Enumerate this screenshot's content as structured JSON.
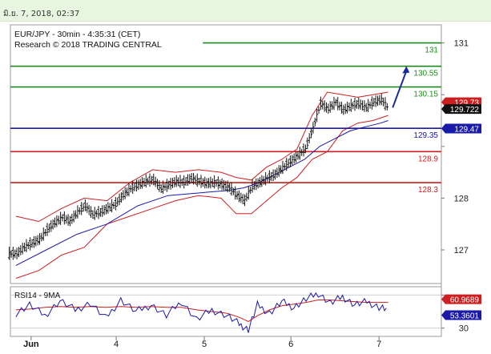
{
  "header": {
    "timestamp": "มิ.ย. 7, 2018, 02:37"
  },
  "chart_data": {
    "type": "candlestick",
    "title": "EUR/JPY - 30min - 4:35:31 (CET)",
    "subtitle": "Research © 2018 TRADING CENTRAL",
    "ylim": [
      126.35,
      131.35
    ],
    "yticks": [
      127,
      128,
      129,
      130,
      131
    ],
    "ytick_labels": [
      "127",
      "128",
      "",
      "",
      "131"
    ],
    "x_labels": [
      {
        "label": "Jun",
        "x": 0.55
      },
      {
        "label": "4",
        "x": 3.35
      },
      {
        "label": "5",
        "x": 6.25
      },
      {
        "label": "6",
        "x": 9.1
      },
      {
        "label": "7",
        "x": 12.0
      }
    ],
    "xlim": [
      0,
      14.3
    ],
    "levels": [
      {
        "value": 131.0,
        "label": "131",
        "color": "#1e8a1e",
        "type": "resistance"
      },
      {
        "value": 130.55,
        "label": "130.55",
        "color": "#1e8a1e",
        "type": "resistance"
      },
      {
        "value": 130.15,
        "label": "130.15",
        "color": "#1e8a1e",
        "type": "resistance"
      },
      {
        "value": 129.35,
        "label": "129.35",
        "color": "#1a1aa8",
        "type": "pivot"
      },
      {
        "value": 128.9,
        "label": "128.9",
        "color": "#cc1f1f",
        "type": "support"
      },
      {
        "value": 128.3,
        "label": "128.3",
        "color": "#cc1f1f",
        "type": "support"
      }
    ],
    "price_badges": [
      {
        "value": 129.73,
        "label": "129.73",
        "color": "#cc1f1f"
      },
      {
        "value": 129.722,
        "label": "129.722",
        "color": "#111111"
      },
      {
        "value": 129.47,
        "label": "129.47",
        "color": "#1a1aa8"
      }
    ],
    "projection": {
      "from": [
        12.45,
        129.75
      ],
      "to": [
        12.9,
        130.55
      ],
      "color": "#1a2a9a"
    },
    "price": {
      "x": [
        0.05,
        0.3,
        0.55,
        0.8,
        1.05,
        1.3,
        1.55,
        1.8,
        2.05,
        2.3,
        2.55,
        2.8,
        3.05,
        3.3,
        3.55,
        3.8,
        4.05,
        4.3,
        4.55,
        4.8,
        5.05,
        5.3,
        5.55,
        5.8,
        6.05,
        6.3,
        6.55,
        6.8,
        7.05,
        7.3,
        7.55,
        7.8,
        8.05,
        8.3,
        8.55,
        8.8,
        9.05,
        9.3,
        9.55,
        9.8,
        10.05,
        10.3,
        10.55,
        10.8,
        11.05,
        11.3,
        11.55,
        11.8,
        12.05,
        12.3
      ],
      "y": [
        126.92,
        127.05,
        127.12,
        127.2,
        127.38,
        127.52,
        127.62,
        127.55,
        127.72,
        127.85,
        127.68,
        127.72,
        127.8,
        127.88,
        128.05,
        128.18,
        128.25,
        128.32,
        128.35,
        128.18,
        128.25,
        128.32,
        128.3,
        128.38,
        128.32,
        128.28,
        128.3,
        128.26,
        128.2,
        128.05,
        127.95,
        128.22,
        128.3,
        128.38,
        128.45,
        128.58,
        128.7,
        128.82,
        128.95,
        129.35,
        129.82,
        129.72,
        129.85,
        129.7,
        129.78,
        129.82,
        129.75,
        129.85,
        129.9,
        129.72
      ]
    },
    "moving_average": {
      "x": [
        0.05,
        1.05,
        2.05,
        3.05,
        4.05,
        5.05,
        6.05,
        7.05,
        7.55,
        8.05,
        8.55,
        9.05,
        9.55,
        10.05,
        10.55,
        11.05,
        11.55,
        12.05,
        12.3
      ],
      "y": [
        126.7,
        127.0,
        127.3,
        127.5,
        127.85,
        128.05,
        128.1,
        128.15,
        128.2,
        128.3,
        128.45,
        128.6,
        128.75,
        129.0,
        129.15,
        129.3,
        129.38,
        129.45,
        129.5
      ]
    },
    "bollinger_upper": {
      "x": [
        0.05,
        0.8,
        1.55,
        2.3,
        3.05,
        3.8,
        4.55,
        5.3,
        6.05,
        6.8,
        7.3,
        7.8,
        8.3,
        8.8,
        9.3,
        9.8,
        10.3,
        10.8,
        11.3,
        11.8,
        12.3
      ],
      "y": [
        127.65,
        127.55,
        127.8,
        128.0,
        127.95,
        128.3,
        128.55,
        128.5,
        128.55,
        128.5,
        128.4,
        128.35,
        128.6,
        128.75,
        128.95,
        129.6,
        130.05,
        130.0,
        129.95,
        130.0,
        130.05
      ]
    },
    "bollinger_lower": {
      "x": [
        0.05,
        0.8,
        1.55,
        2.3,
        3.05,
        3.8,
        4.55,
        5.3,
        6.05,
        6.8,
        7.3,
        7.8,
        8.3,
        8.8,
        9.3,
        9.8,
        10.3,
        10.8,
        11.3,
        11.8,
        12.3
      ],
      "y": [
        126.45,
        126.6,
        126.9,
        127.05,
        127.5,
        127.65,
        127.8,
        127.95,
        128.05,
        128.0,
        127.7,
        127.7,
        127.95,
        128.2,
        128.4,
        128.75,
        128.9,
        129.3,
        129.45,
        129.5,
        129.6
      ]
    },
    "rsi": {
      "title": "RSI14 - 9MA",
      "ylim": [
        20,
        80
      ],
      "yticks": [
        30,
        70
      ],
      "ytick_labels": [
        "30",
        ""
      ],
      "badges": [
        {
          "value": 60.9689,
          "label": "60.9689",
          "color": "#cc1f1f"
        },
        {
          "value": 53.3601,
          "label": "53.3601",
          "color": "#1a1aa8"
        }
      ],
      "rsi_line": {
        "x": [
          0.05,
          0.5,
          1.0,
          1.5,
          2.0,
          2.5,
          3.0,
          3.5,
          4.0,
          4.5,
          5.0,
          5.5,
          6.0,
          6.5,
          7.0,
          7.4,
          7.7,
          8.0,
          8.4,
          8.8,
          9.2,
          9.6,
          10.0,
          10.4,
          10.8,
          11.2,
          11.6,
          12.0,
          12.3
        ],
        "y": [
          48,
          58,
          45,
          63,
          52,
          60,
          42,
          64,
          50,
          58,
          45,
          62,
          40,
          52,
          45,
          35,
          28,
          58,
          48,
          62,
          55,
          65,
          72,
          60,
          68,
          58,
          62,
          55,
          53
        ]
      },
      "ma_line": {
        "x": [
          0.05,
          0.5,
          1.0,
          1.5,
          2.0,
          2.5,
          3.0,
          3.5,
          4.0,
          4.5,
          5.0,
          5.5,
          6.0,
          6.5,
          7.0,
          7.4,
          7.7,
          8.0,
          8.4,
          8.8,
          9.2,
          9.6,
          10.0,
          10.4,
          10.8,
          11.2,
          11.6,
          12.0,
          12.3
        ],
        "y": [
          52,
          53,
          55,
          56,
          55,
          56,
          55,
          56,
          55,
          56,
          55,
          55,
          52,
          50,
          48,
          43,
          38,
          45,
          52,
          57,
          59,
          61,
          64,
          64,
          63,
          62,
          61,
          61,
          61
        ]
      }
    }
  }
}
